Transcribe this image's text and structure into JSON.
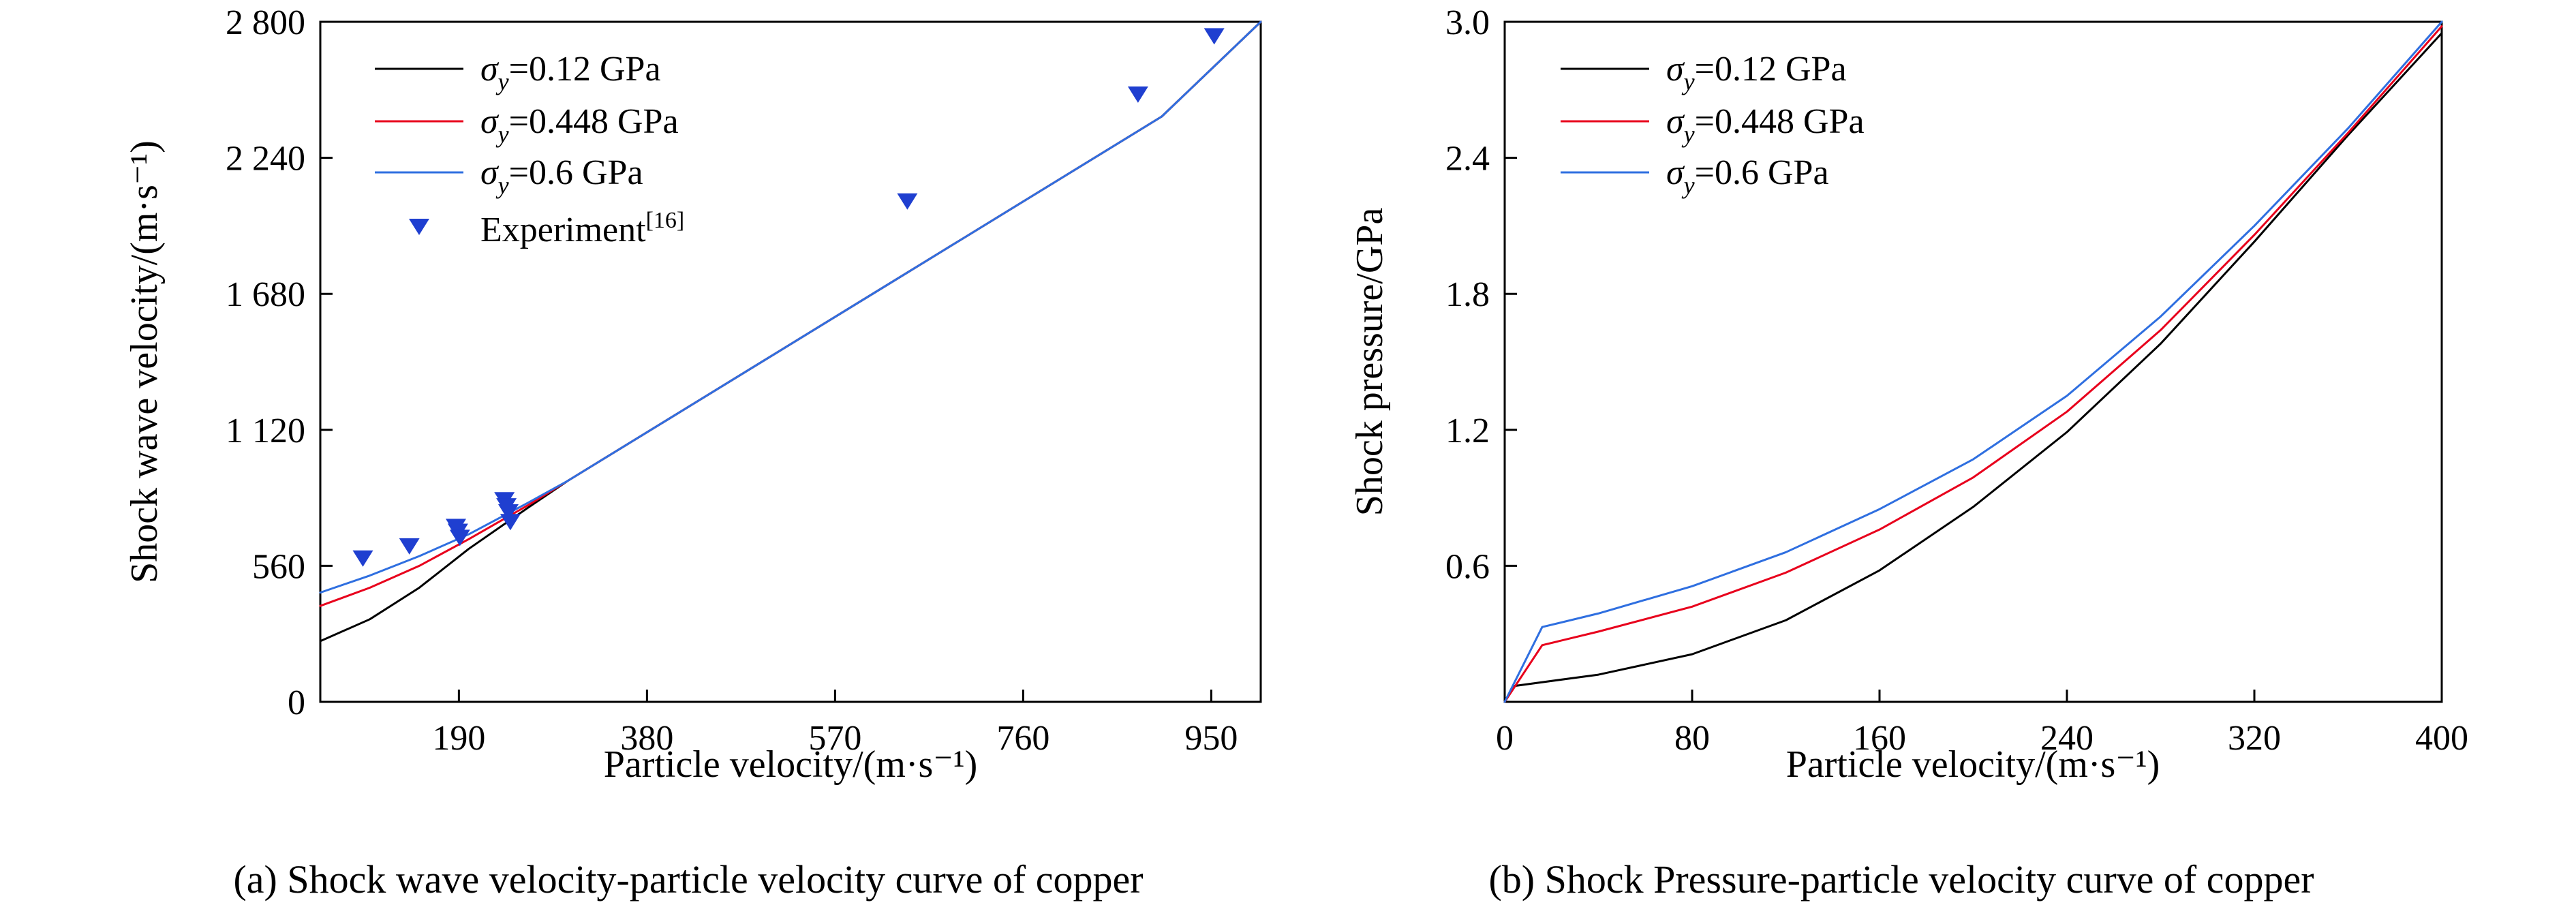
{
  "figure": {
    "background": "#ffffff"
  },
  "chart_data": [
    {
      "type": "line",
      "caption": "(a) Shock wave velocity-particle velocity curve of copper",
      "xlabel": "Particle velocity/(m·s⁻¹)",
      "ylabel": "Shock wave velocity/(m·s⁻¹)",
      "xlim": [
        50,
        1000
      ],
      "ylim": [
        0,
        2800
      ],
      "xticks": [
        190,
        380,
        570,
        760,
        950
      ],
      "xtick_labels": [
        "190",
        "380",
        "570",
        "760",
        "950"
      ],
      "yticks": [
        0,
        560,
        1120,
        1680,
        2240,
        2800
      ],
      "ytick_labels": [
        "0",
        "560",
        "1 120",
        "1 680",
        "2 240",
        "2 800"
      ],
      "grid": false,
      "legend_position": "top-left",
      "series": [
        {
          "name": "σy=0.12 GPa",
          "name_prefix": "σ",
          "name_subscript": "y",
          "name_suffix": "=0.12 GPa",
          "color": "#000000",
          "points": [
            [
              50,
              250
            ],
            [
              100,
              340
            ],
            [
              150,
              470
            ],
            [
              200,
              630
            ],
            [
              260,
              800
            ],
            [
              300,
              910
            ],
            [
              400,
              1160
            ],
            [
              500,
              1410
            ],
            [
              600,
              1660
            ],
            [
              700,
              1910
            ],
            [
              800,
              2160
            ],
            [
              900,
              2410
            ],
            [
              1000,
              2800
            ]
          ]
        },
        {
          "name": "σy=0.448 GPa",
          "name_prefix": "σ",
          "name_subscript": "y",
          "name_suffix": "=0.448 GPa",
          "color": "#e8001c",
          "points": [
            [
              50,
              395
            ],
            [
              100,
              470
            ],
            [
              150,
              560
            ],
            [
              200,
              670
            ],
            [
              260,
              810
            ],
            [
              300,
              910
            ],
            [
              400,
              1160
            ],
            [
              500,
              1410
            ],
            [
              600,
              1660
            ],
            [
              700,
              1910
            ],
            [
              800,
              2160
            ],
            [
              900,
              2410
            ],
            [
              1000,
              2800
            ]
          ]
        },
        {
          "name": "σy=0.6 GPa",
          "name_prefix": "σ",
          "name_subscript": "y",
          "name_suffix": "=0.6 GPa",
          "color": "#2f6fe0",
          "points": [
            [
              50,
              450
            ],
            [
              100,
              520
            ],
            [
              150,
              600
            ],
            [
              200,
              690
            ],
            [
              260,
              820
            ],
            [
              300,
              910
            ],
            [
              400,
              1160
            ],
            [
              500,
              1410
            ],
            [
              600,
              1660
            ],
            [
              700,
              1910
            ],
            [
              800,
              2160
            ],
            [
              900,
              2410
            ],
            [
              1000,
              2800
            ]
          ]
        }
      ],
      "markers": {
        "name": "Experiment[16]",
        "name_main": "Experiment",
        "name_superscript": "[16]",
        "color": "#1f3fd0",
        "points": [
          [
            93,
            590
          ],
          [
            140,
            640
          ],
          [
            187,
            720
          ],
          [
            189,
            700
          ],
          [
            191,
            675
          ],
          [
            236,
            830
          ],
          [
            238,
            805
          ],
          [
            240,
            780
          ],
          [
            242,
            740
          ],
          [
            643,
            2060
          ],
          [
            876,
            2500
          ],
          [
            953,
            2740
          ]
        ]
      }
    },
    {
      "type": "line",
      "caption": "(b) Shock Pressure-particle velocity curve of copper",
      "xlabel": "Particle velocity/(m·s⁻¹)",
      "ylabel": "Shock pressure/GPa",
      "xlim": [
        0,
        400
      ],
      "ylim": [
        0,
        3.0
      ],
      "xticks": [
        0,
        80,
        160,
        240,
        320,
        400
      ],
      "xtick_labels": [
        "0",
        "80",
        "160",
        "240",
        "320",
        "400"
      ],
      "yticks": [
        0.6,
        1.2,
        1.8,
        2.4,
        3.0
      ],
      "ytick_labels": [
        "0.6",
        "1.2",
        "1.8",
        "2.4",
        "3.0"
      ],
      "grid": false,
      "legend_position": "top-left",
      "series": [
        {
          "name": "σy=0.12 GPa",
          "name_prefix": "σ",
          "name_subscript": "y",
          "name_suffix": "=0.12 GPa",
          "color": "#000000",
          "points": [
            [
              0,
              0
            ],
            [
              4,
              0.07
            ],
            [
              40,
              0.12
            ],
            [
              80,
              0.21
            ],
            [
              120,
              0.36
            ],
            [
              160,
              0.58
            ],
            [
              200,
              0.86
            ],
            [
              240,
              1.19
            ],
            [
              280,
              1.58
            ],
            [
              320,
              2.03
            ],
            [
              360,
              2.5
            ],
            [
              400,
              2.95
            ]
          ]
        },
        {
          "name": "σy=0.448 GPa",
          "name_prefix": "σ",
          "name_subscript": "y",
          "name_suffix": "=0.448 GPa",
          "color": "#e8001c",
          "points": [
            [
              0,
              0
            ],
            [
              16,
              0.25
            ],
            [
              40,
              0.31
            ],
            [
              80,
              0.42
            ],
            [
              120,
              0.57
            ],
            [
              160,
              0.76
            ],
            [
              200,
              0.99
            ],
            [
              240,
              1.28
            ],
            [
              280,
              1.64
            ],
            [
              320,
              2.06
            ],
            [
              360,
              2.51
            ],
            [
              400,
              2.98
            ]
          ]
        },
        {
          "name": "σy=0.6 GPa",
          "name_prefix": "σ",
          "name_subscript": "y",
          "name_suffix": "=0.6 GPa",
          "color": "#2f6fe0",
          "points": [
            [
              0,
              0
            ],
            [
              16,
              0.33
            ],
            [
              40,
              0.39
            ],
            [
              80,
              0.51
            ],
            [
              120,
              0.66
            ],
            [
              160,
              0.85
            ],
            [
              200,
              1.07
            ],
            [
              240,
              1.35
            ],
            [
              280,
              1.7
            ],
            [
              320,
              2.1
            ],
            [
              360,
              2.53
            ],
            [
              400,
              3.0
            ]
          ]
        }
      ]
    }
  ]
}
